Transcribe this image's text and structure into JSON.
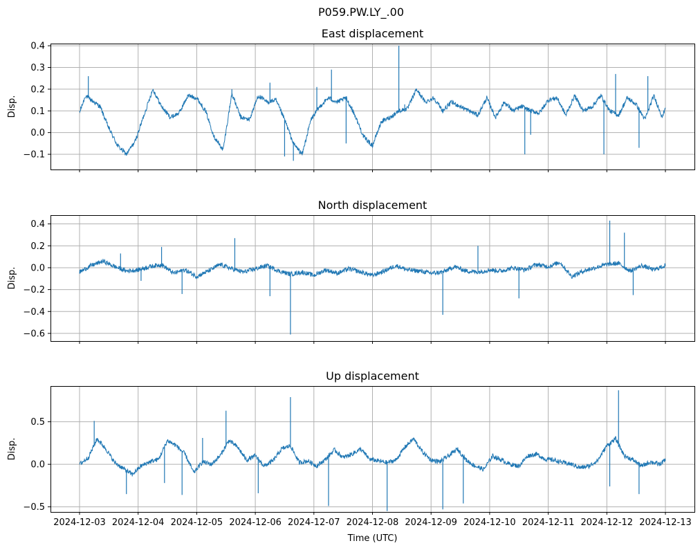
{
  "figure_title": "P059.PW.LY_.00",
  "colors": {
    "series": "#1f77b4",
    "grid": "#b0b0b0",
    "axis": "#000000"
  },
  "chart_data": [
    {
      "type": "line",
      "title": "East displacement",
      "xlabel": "",
      "ylabel": "Disp.",
      "ylim": [
        -0.17,
        0.41
      ],
      "yticks": [
        -0.1,
        0.0,
        0.1,
        0.2,
        0.3,
        0.4
      ],
      "ytick_labels": [
        "−0.1",
        "0.0",
        "0.1",
        "0.2",
        "0.3",
        "0.4"
      ],
      "grid": true,
      "series": [
        {
          "name": "East",
          "x_days": [
            0,
            0.1,
            0.2,
            0.35,
            0.5,
            0.65,
            0.8,
            0.95,
            1.1,
            1.25,
            1.4,
            1.55,
            1.7,
            1.85,
            2.0,
            2.15,
            2.3,
            2.45,
            2.6,
            2.75,
            2.9,
            3.05,
            3.2,
            3.35,
            3.5,
            3.65,
            3.8,
            3.95,
            4.1,
            4.25,
            4.4,
            4.55,
            4.7,
            4.85,
            5.0,
            5.15,
            5.3,
            5.45,
            5.6,
            5.75,
            5.9,
            6.05,
            6.2,
            6.35,
            6.5,
            6.65,
            6.8,
            6.95,
            7.1,
            7.25,
            7.4,
            7.55,
            7.7,
            7.85,
            8.0,
            8.15,
            8.3,
            8.45,
            8.6,
            8.75,
            8.9,
            9.05,
            9.2,
            9.35,
            9.5,
            9.65,
            9.8,
            9.95,
            10.0
          ],
          "values": [
            0.09,
            0.17,
            0.15,
            0.12,
            0.02,
            -0.06,
            -0.1,
            -0.04,
            0.08,
            0.2,
            0.12,
            0.07,
            0.09,
            0.17,
            0.16,
            0.1,
            -0.02,
            -0.08,
            0.18,
            0.07,
            0.06,
            0.17,
            0.14,
            0.15,
            0.06,
            -0.05,
            -0.1,
            0.06,
            0.12,
            0.16,
            0.14,
            0.16,
            0.08,
            -0.02,
            -0.06,
            0.05,
            0.07,
            0.1,
            0.11,
            0.2,
            0.14,
            0.16,
            0.1,
            0.14,
            0.12,
            0.1,
            0.08,
            0.16,
            0.07,
            0.14,
            0.1,
            0.12,
            0.1,
            0.09,
            0.15,
            0.16,
            0.08,
            0.17,
            0.1,
            0.12,
            0.17,
            0.1,
            0.08,
            0.16,
            0.13,
            0.06,
            0.17,
            0.07,
            0.12
          ],
          "spikes": [
            [
              0.02,
              0.12
            ],
            [
              0.15,
              0.26
            ],
            [
              2.6,
              0.2
            ],
            [
              3.25,
              0.23
            ],
            [
              3.5,
              -0.11
            ],
            [
              3.65,
              -0.13
            ],
            [
              4.05,
              0.21
            ],
            [
              4.3,
              0.29
            ],
            [
              4.55,
              -0.05
            ],
            [
              4.65,
              0.12
            ],
            [
              5.45,
              0.4
            ],
            [
              5.55,
              0.13
            ],
            [
              7.6,
              -0.1
            ],
            [
              7.7,
              -0.01
            ],
            [
              9.15,
              0.27
            ],
            [
              9.55,
              -0.07
            ],
            [
              9.7,
              0.26
            ],
            [
              8.95,
              -0.1
            ]
          ]
        }
      ]
    },
    {
      "type": "line",
      "title": "North displacement",
      "xlabel": "",
      "ylabel": "Disp.",
      "ylim": [
        -0.67,
        0.48
      ],
      "yticks": [
        -0.6,
        -0.4,
        -0.2,
        0.0,
        0.2,
        0.4
      ],
      "ytick_labels": [
        "−0.6",
        "−0.4",
        "−0.2",
        "0.0",
        "0.2",
        "0.4"
      ],
      "grid": true,
      "series": [
        {
          "name": "North",
          "x_days": [
            0,
            0.2,
            0.4,
            0.6,
            0.8,
            1.0,
            1.2,
            1.4,
            1.6,
            1.8,
            2.0,
            2.2,
            2.4,
            2.6,
            2.8,
            3.0,
            3.2,
            3.4,
            3.6,
            3.8,
            4.0,
            4.2,
            4.4,
            4.6,
            4.8,
            5.0,
            5.2,
            5.4,
            5.6,
            5.8,
            6.0,
            6.2,
            6.4,
            6.6,
            6.8,
            7.0,
            7.2,
            7.4,
            7.6,
            7.8,
            8.0,
            8.2,
            8.4,
            8.6,
            8.8,
            9.0,
            9.2,
            9.4,
            9.6,
            9.8,
            10.0
          ],
          "values": [
            -0.04,
            0.02,
            0.06,
            0.01,
            -0.03,
            -0.02,
            0.01,
            0.03,
            -0.05,
            -0.02,
            -0.08,
            -0.03,
            0.03,
            -0.01,
            -0.04,
            -0.01,
            0.02,
            -0.03,
            -0.06,
            -0.04,
            -0.07,
            -0.02,
            -0.05,
            -0.01,
            -0.04,
            -0.07,
            -0.03,
            0.02,
            -0.02,
            -0.03,
            -0.05,
            -0.04,
            0.01,
            -0.03,
            -0.04,
            -0.02,
            -0.03,
            0.0,
            -0.02,
            0.03,
            0.01,
            0.05,
            -0.08,
            -0.03,
            0.0,
            0.03,
            0.04,
            -0.03,
            0.02,
            -0.02,
            0.02
          ],
          "spikes": [
            [
              0.7,
              0.13
            ],
            [
              1.05,
              -0.12
            ],
            [
              1.4,
              0.19
            ],
            [
              1.75,
              -0.24
            ],
            [
              2.65,
              0.27
            ],
            [
              3.25,
              -0.26
            ],
            [
              3.6,
              -0.61
            ],
            [
              4.8,
              -0.05
            ],
            [
              6.2,
              -0.43
            ],
            [
              6.8,
              0.2
            ],
            [
              7.5,
              -0.28
            ],
            [
              9.05,
              0.43
            ],
            [
              9.3,
              0.32
            ],
            [
              9.45,
              -0.25
            ]
          ]
        }
      ]
    },
    {
      "type": "line",
      "title": "Up displacement",
      "xlabel": "Time (UTC)",
      "ylabel": "Disp.",
      "ylim": [
        -0.56,
        0.92
      ],
      "yticks": [
        -0.5,
        0.0,
        0.5
      ],
      "ytick_labels": [
        "−0.5",
        "0.0",
        "0.5"
      ],
      "grid": true,
      "series": [
        {
          "name": "Up",
          "x_days": [
            0,
            0.15,
            0.3,
            0.45,
            0.6,
            0.75,
            0.9,
            1.05,
            1.2,
            1.35,
            1.5,
            1.65,
            1.8,
            1.95,
            2.1,
            2.25,
            2.4,
            2.55,
            2.7,
            2.85,
            3.0,
            3.15,
            3.3,
            3.45,
            3.6,
            3.75,
            3.9,
            4.05,
            4.2,
            4.35,
            4.5,
            4.65,
            4.8,
            4.95,
            5.1,
            5.25,
            5.4,
            5.55,
            5.7,
            5.85,
            6.0,
            6.15,
            6.3,
            6.45,
            6.6,
            6.75,
            6.9,
            7.05,
            7.2,
            7.35,
            7.5,
            7.65,
            7.8,
            7.95,
            8.1,
            8.25,
            8.4,
            8.55,
            8.7,
            8.85,
            9.0,
            9.15,
            9.3,
            9.45,
            9.6,
            9.75,
            9.9,
            10.0
          ],
          "values": [
            0.0,
            0.08,
            0.3,
            0.18,
            0.02,
            -0.05,
            -0.12,
            -0.02,
            0.03,
            0.06,
            0.28,
            0.22,
            0.12,
            -0.1,
            0.03,
            0.0,
            0.1,
            0.28,
            0.2,
            0.05,
            0.1,
            -0.02,
            0.04,
            0.18,
            0.22,
            0.02,
            0.04,
            -0.02,
            0.06,
            0.17,
            0.08,
            0.12,
            0.18,
            0.06,
            0.04,
            0.02,
            0.05,
            0.2,
            0.3,
            0.15,
            0.05,
            0.03,
            0.1,
            0.18,
            0.05,
            -0.02,
            -0.06,
            0.1,
            0.05,
            0.0,
            -0.02,
            0.1,
            0.12,
            0.06,
            0.05,
            0.02,
            0.0,
            -0.04,
            -0.02,
            0.05,
            0.22,
            0.3,
            0.1,
            0.05,
            -0.02,
            0.03,
            0.0,
            0.05
          ],
          "spikes": [
            [
              0.25,
              0.51
            ],
            [
              0.8,
              -0.35
            ],
            [
              1.45,
              -0.22
            ],
            [
              1.75,
              -0.36
            ],
            [
              2.1,
              0.31
            ],
            [
              2.5,
              0.63
            ],
            [
              3.05,
              -0.34
            ],
            [
              3.6,
              0.79
            ],
            [
              4.25,
              -0.49
            ],
            [
              5.25,
              -0.55
            ],
            [
              6.2,
              -0.53
            ],
            [
              6.55,
              -0.46
            ],
            [
              9.05,
              -0.26
            ],
            [
              9.2,
              0.87
            ],
            [
              9.55,
              -0.35
            ]
          ]
        }
      ]
    }
  ],
  "x_axis": {
    "start_day": 0,
    "end_day": 10,
    "tick_labels": [
      "2024-12-03",
      "2024-12-04",
      "2024-12-05",
      "2024-12-06",
      "2024-12-07",
      "2024-12-08",
      "2024-12-09",
      "2024-12-10",
      "2024-12-11",
      "2024-12-12",
      "2024-12-13"
    ],
    "label": "Time (UTC)"
  }
}
